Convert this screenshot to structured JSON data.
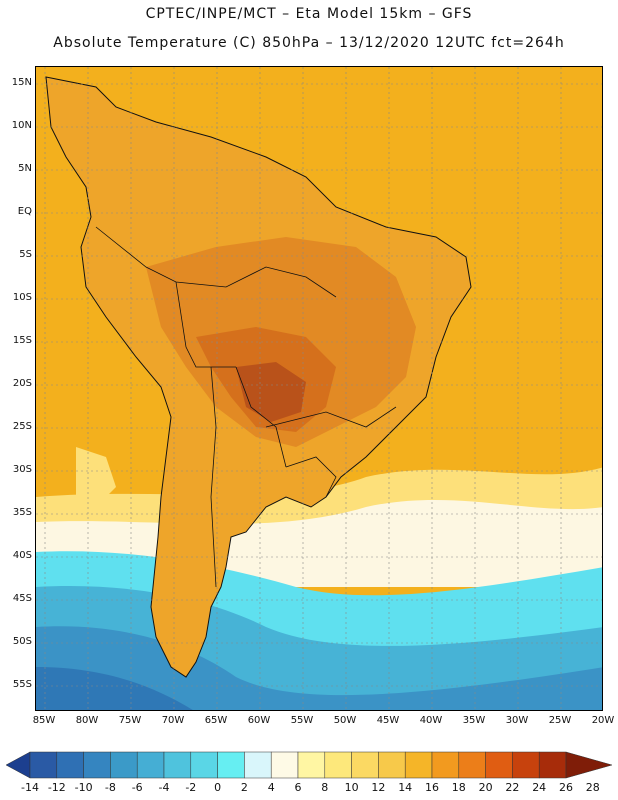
{
  "header": {
    "line1": "CPTEC/INPE/MCT –  Eta Model 15km – GFS",
    "line2": "Absolute Temperature (C) 850hPa – 13/12/2020 12UTC fct=264h"
  },
  "lat_labels": [
    "15N",
    "10N",
    "5N",
    "EQ",
    "5S",
    "10S",
    "15S",
    "20S",
    "25S",
    "30S",
    "35S",
    "40S",
    "45S",
    "50S",
    "55S"
  ],
  "lon_labels": [
    "85W",
    "80W",
    "75W",
    "70W",
    "65W",
    "60W",
    "55W",
    "50W",
    "45W",
    "40W",
    "35W",
    "30W",
    "25W",
    "20W"
  ],
  "colorbar": {
    "labels": [
      "-14",
      "-12",
      "-10",
      "-8",
      "-6",
      "-4",
      "-2",
      "0",
      "2",
      "4",
      "6",
      "8",
      "10",
      "12",
      "14",
      "16",
      "18",
      "20",
      "22",
      "24",
      "26",
      "28"
    ],
    "colors": [
      "#1c3f8f",
      "#2a5aa5",
      "#2f70b4",
      "#3585c0",
      "#3b9ac8",
      "#45aed4",
      "#4fc3dd",
      "#5ad6e6",
      "#66eef2",
      "#d9f6fb",
      "#fefae6",
      "#fff6a3",
      "#fde87b",
      "#fbd963",
      "#f7c94a",
      "#f5b528",
      "#f29a1f",
      "#ec7e19",
      "#e05d12",
      "#c7420d",
      "#a72c0a",
      "#7f1d08"
    ]
  },
  "map_colors": {
    "ocean_warm": "#f3b01d",
    "land_base": "#eea52a",
    "hot1": "#e28a24",
    "hot2": "#d5701c",
    "hot3": "#b9521a",
    "mild": "#f5c85a",
    "pale": "#fdeaa8",
    "cream": "#fdf7e2",
    "cyan": "#5fe0ef",
    "cold1": "#47b3d6",
    "cold2": "#3b93c6",
    "cold3": "#2f78b6",
    "outline": "#111111",
    "grid": "#888888"
  }
}
